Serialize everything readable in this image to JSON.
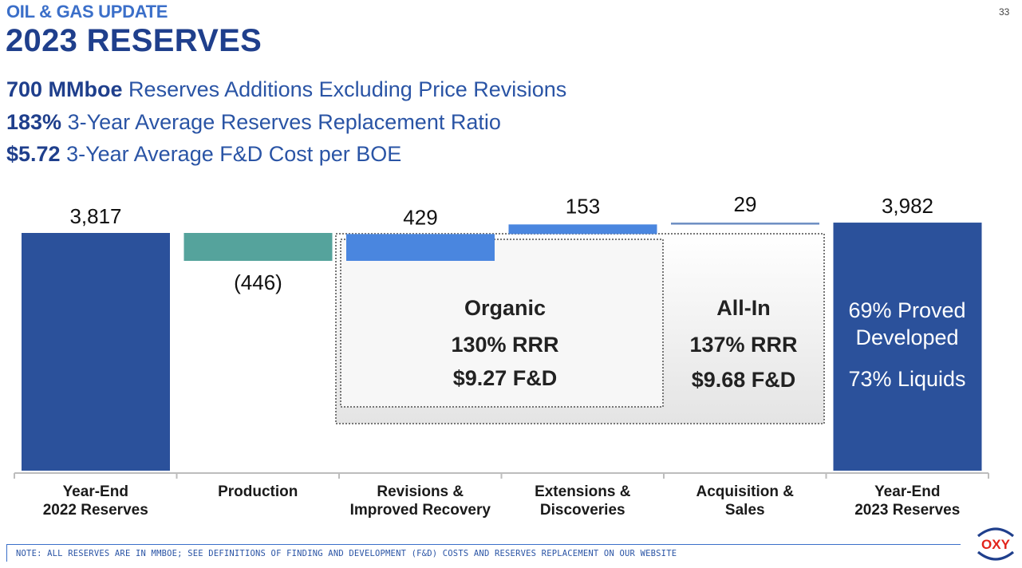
{
  "header": {
    "section": "OIL & GAS UPDATE",
    "title": "2023 RESERVES",
    "page_number": "33"
  },
  "highlights": [
    {
      "value": "700 MMboe",
      "text": " Reserves Additions Excluding Price Revisions"
    },
    {
      "value": "183%",
      "text": " 3-Year Average Reserves Replacement Ratio"
    },
    {
      "value": "$5.72",
      "text": " 3-Year Average F&D Cost per BOE"
    }
  ],
  "chart_data": {
    "type": "waterfall",
    "unit": "MMboe",
    "steps": [
      {
        "category": [
          "Year-End",
          "2022 Reserves"
        ],
        "kind": "total",
        "value": 3817,
        "label": "3,817",
        "color": "#2b519b"
      },
      {
        "category": [
          "Production"
        ],
        "kind": "delta",
        "value": -446,
        "label": "(446)",
        "color": "#55a39c"
      },
      {
        "category": [
          "Revisions &",
          "Improved Recovery"
        ],
        "kind": "delta",
        "value": 429,
        "label": "429",
        "color": "#4a86df"
      },
      {
        "category": [
          "Extensions &",
          "Discoveries"
        ],
        "kind": "delta",
        "value": 153,
        "label": "153",
        "color": "#4a86df"
      },
      {
        "category": [
          "Acquisition &",
          "Sales"
        ],
        "kind": "delta",
        "value": 29,
        "label": "29",
        "color": "#6d8ec2"
      },
      {
        "category": [
          "Year-End",
          "2023 Reserves"
        ],
        "kind": "total",
        "value": 3982,
        "label": "3,982",
        "color": "#2b519b"
      }
    ],
    "callouts": {
      "organic": {
        "title": "Organic",
        "rrr": "130% RRR",
        "fd": "$9.27 F&D"
      },
      "all_in": {
        "title": "All-In",
        "rrr": "137% RRR",
        "fd": "$9.68 F&D"
      },
      "year_end_2023": {
        "line1": "69% Proved",
        "line2": "Developed",
        "line3": "73% Liquids"
      }
    }
  },
  "footnote": "NOTE: ALL RESERVES ARE IN MMBOE; SEE DEFINITIONS OF FINDING AND DEVELOPMENT (F&D) COSTS AND RESERVES REPLACEMENT ON OUR WEBSITE",
  "logo": {
    "text": "OXY",
    "color": "#e2231a"
  }
}
